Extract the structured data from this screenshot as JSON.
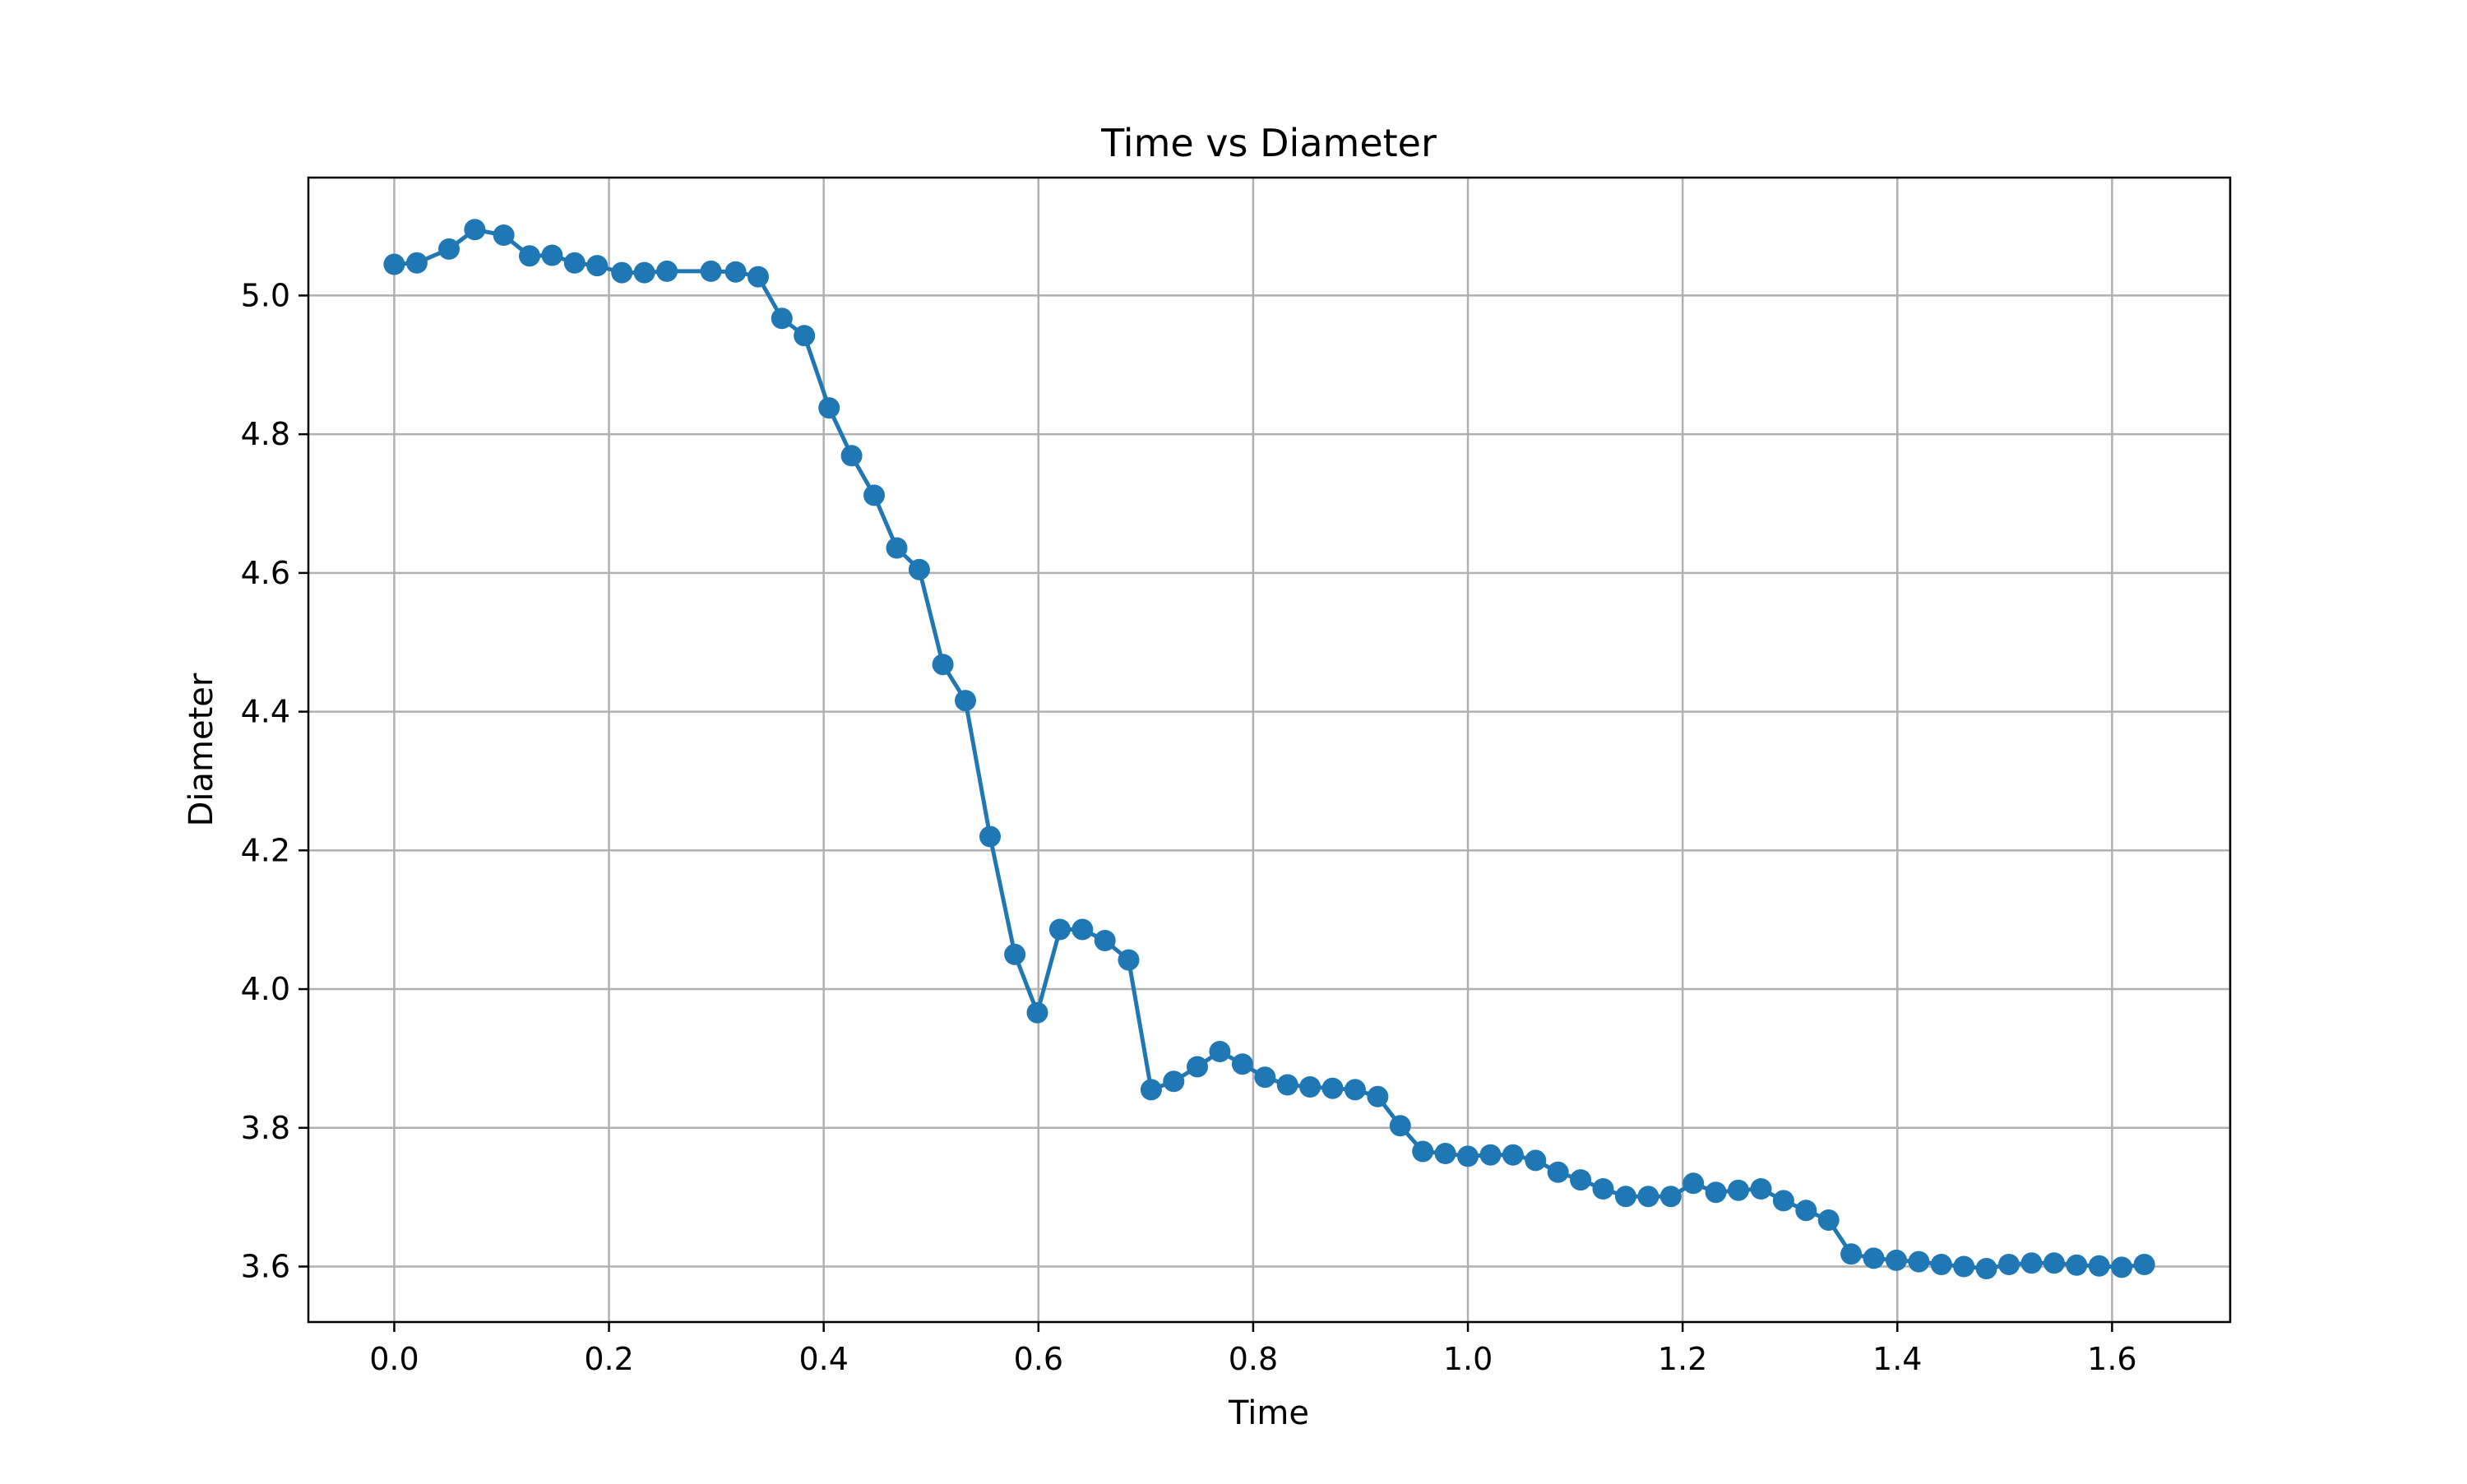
{
  "chart_data": {
    "type": "line",
    "title": "Time vs Diameter",
    "xlabel": "Time",
    "ylabel": "Diameter",
    "xlim": [
      -0.08,
      1.71
    ],
    "ylim": [
      3.52,
      5.17
    ],
    "xticks": [
      0.0,
      0.2,
      0.4,
      0.6,
      0.8,
      1.0,
      1.2,
      1.4,
      1.6
    ],
    "xtick_labels": [
      "0.0",
      "0.2",
      "0.4",
      "0.6",
      "0.8",
      "1.0",
      "1.2",
      "1.4",
      "1.6"
    ],
    "yticks": [
      3.6,
      3.8,
      4.0,
      4.2,
      4.4,
      4.6,
      4.8,
      5.0
    ],
    "ytick_labels": [
      "3.6",
      "3.8",
      "4.0",
      "4.2",
      "4.4",
      "4.6",
      "4.8",
      "5.0"
    ],
    "grid": true,
    "legend": null,
    "series": [
      {
        "color": "#1f77b4",
        "marker": "circle",
        "x": [
          0.0,
          0.021,
          0.051,
          0.075,
          0.102,
          0.126,
          0.147,
          0.168,
          0.189,
          0.212,
          0.233,
          0.254,
          0.295,
          0.318,
          0.339,
          0.361,
          0.382,
          0.405,
          0.426,
          0.447,
          0.468,
          0.489,
          0.511,
          0.532,
          0.555,
          0.578,
          0.599,
          0.62,
          0.641,
          0.662,
          0.684,
          0.705,
          0.726,
          0.748,
          0.769,
          0.79,
          0.811,
          0.832,
          0.853,
          0.874,
          0.895,
          0.916,
          0.937,
          0.958,
          0.979,
          1.0,
          1.021,
          1.042,
          1.063,
          1.084,
          1.105,
          1.126,
          1.147,
          1.168,
          1.189,
          1.21,
          1.231,
          1.252,
          1.273,
          1.294,
          1.315,
          1.336,
          1.357,
          1.378,
          1.399,
          1.42,
          1.441,
          1.462,
          1.483,
          1.504,
          1.525,
          1.546,
          1.567,
          1.588,
          1.609,
          1.63
        ],
        "y": [
          5.045,
          5.047,
          5.067,
          5.095,
          5.087,
          5.057,
          5.058,
          5.047,
          5.043,
          5.033,
          5.033,
          5.035,
          5.035,
          5.034,
          5.027,
          4.967,
          4.942,
          4.838,
          4.769,
          4.712,
          4.636,
          4.605,
          4.468,
          4.416,
          4.22,
          4.05,
          3.966,
          4.086,
          4.086,
          4.07,
          4.042,
          3.855,
          3.867,
          3.888,
          3.91,
          3.892,
          3.873,
          3.862,
          3.859,
          3.857,
          3.855,
          3.845,
          3.803,
          3.766,
          3.763,
          3.759,
          3.761,
          3.761,
          3.753,
          3.736,
          3.725,
          3.712,
          3.701,
          3.701,
          3.701,
          3.72,
          3.707,
          3.71,
          3.712,
          3.695,
          3.681,
          3.667,
          3.618,
          3.612,
          3.609,
          3.607,
          3.603,
          3.6,
          3.597,
          3.603,
          3.605,
          3.605,
          3.602,
          3.601,
          3.599,
          3.603
        ]
      }
    ]
  }
}
